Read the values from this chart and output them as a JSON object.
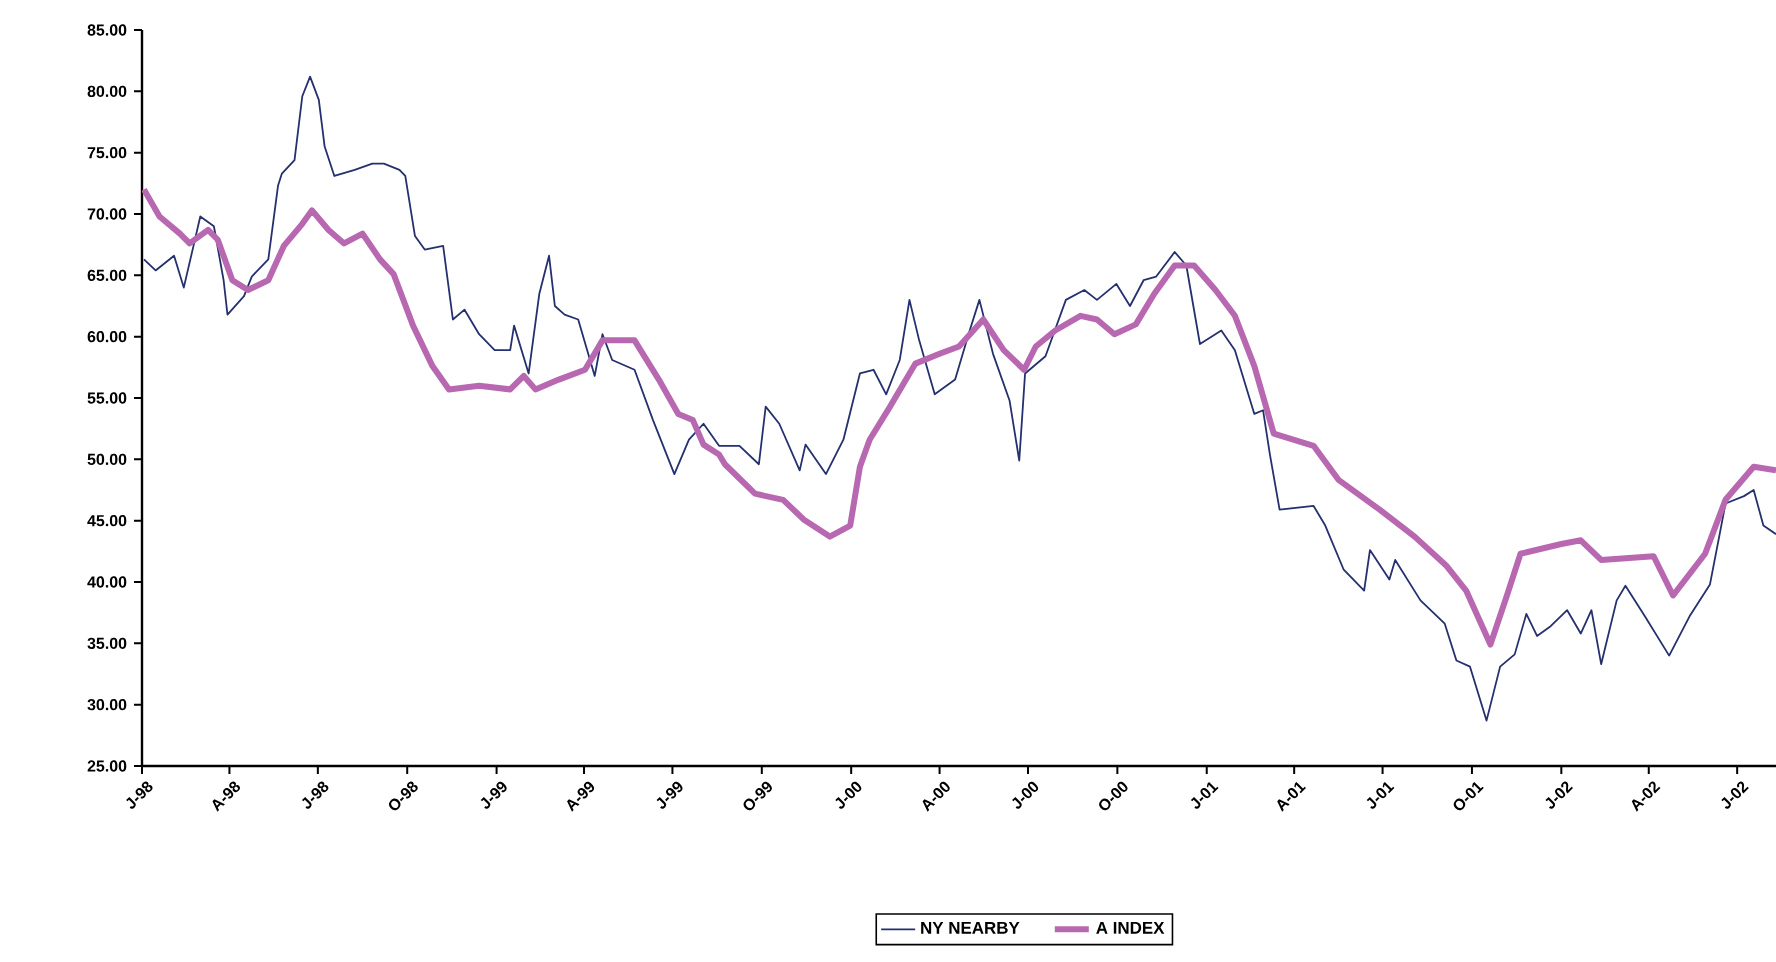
{
  "chart_data": {
    "type": "line",
    "xlim": [
      "1998-01-01",
      "2002-08-10"
    ],
    "xticks": [
      {
        "value": "1998-01-01",
        "label": "J-98"
      },
      {
        "value": "1998-04-01",
        "label": "A-98"
      },
      {
        "value": "1998-07-01",
        "label": "J-98"
      },
      {
        "value": "1998-10-01",
        "label": "O-98"
      },
      {
        "value": "1999-01-01",
        "label": "J-99"
      },
      {
        "value": "1999-04-01",
        "label": "A-99"
      },
      {
        "value": "1999-07-01",
        "label": "J-99"
      },
      {
        "value": "1999-10-01",
        "label": "O-99"
      },
      {
        "value": "2000-01-01",
        "label": "J-00"
      },
      {
        "value": "2000-04-01",
        "label": "A-00"
      },
      {
        "value": "2000-07-01",
        "label": "J-00"
      },
      {
        "value": "2000-10-01",
        "label": "O-00"
      },
      {
        "value": "2001-01-01",
        "label": "J-01"
      },
      {
        "value": "2001-04-01",
        "label": "A-01"
      },
      {
        "value": "2001-07-01",
        "label": "J-01"
      },
      {
        "value": "2001-10-01",
        "label": "O-01"
      },
      {
        "value": "2002-01-01",
        "label": "J-02"
      },
      {
        "value": "2002-04-01",
        "label": "A-02"
      },
      {
        "value": "2002-07-01",
        "label": "J-02"
      }
    ],
    "ylim": [
      25,
      85
    ],
    "yticks": [
      {
        "value": 25,
        "label": "25.00"
      },
      {
        "value": 30,
        "label": "30.00"
      },
      {
        "value": 35,
        "label": "35.00"
      },
      {
        "value": 40,
        "label": "40.00"
      },
      {
        "value": 45,
        "label": "45.00"
      },
      {
        "value": 50,
        "label": "50.00"
      },
      {
        "value": 55,
        "label": "55.00"
      },
      {
        "value": 60,
        "label": "60.00"
      },
      {
        "value": 65,
        "label": "65.00"
      },
      {
        "value": 70,
        "label": "70.00"
      },
      {
        "value": 75,
        "label": "75.00"
      },
      {
        "value": 80,
        "label": "80.00"
      },
      {
        "value": 85,
        "label": "85.00"
      }
    ],
    "grid": false,
    "legend": "bottom",
    "marker": "none",
    "line_style": "solid",
    "series": [
      {
        "name": "NY NEARBY",
        "color": "#25306e",
        "x": [
          "1998-01-03",
          "1998-01-15",
          "1998-02-03",
          "1998-02-13",
          "1998-02-23",
          "1998-03-02",
          "1998-03-16",
          "1998-03-26",
          "1998-03-30",
          "1998-04-16",
          "1998-04-24",
          "1998-05-11",
          "1998-05-21",
          "1998-05-25",
          "1998-06-07",
          "1998-06-15",
          "1998-06-23",
          "1998-07-02",
          "1998-07-08",
          "1998-07-18",
          "1998-08-08",
          "1998-08-26",
          "1998-09-07",
          "1998-09-23",
          "1998-09-29",
          "1998-10-09",
          "1998-10-19",
          "1998-11-07",
          "1998-11-17",
          "1998-11-29",
          "1998-12-14",
          "1998-12-30",
          "1999-01-15",
          "1999-01-19",
          "1999-02-03",
          "1999-02-14",
          "1999-02-24",
          "1999-03-02",
          "1999-03-12",
          "1999-03-26",
          "1999-04-12",
          "1999-04-20",
          "1999-04-30",
          "1999-05-23",
          "1999-06-11",
          "1999-07-03",
          "1999-07-18",
          "1999-08-02",
          "1999-08-18",
          "1999-08-24",
          "1999-09-08",
          "1999-09-28",
          "1999-10-05",
          "1999-10-19",
          "1999-11-09",
          "1999-11-15",
          "1999-12-06",
          "1999-12-24",
          "2000-01-10",
          "2000-01-24",
          "2000-02-06",
          "2000-02-20",
          "2000-03-01",
          "2000-03-11",
          "2000-03-27",
          "2000-04-17",
          "2000-05-02",
          "2000-05-12",
          "2000-05-26",
          "2000-06-12",
          "2000-06-22",
          "2000-06-28",
          "2000-07-19",
          "2000-08-09",
          "2000-08-28",
          "2000-09-10",
          "2000-09-30",
          "2000-10-14",
          "2000-10-28",
          "2000-11-10",
          "2000-11-29",
          "2000-12-11",
          "2000-12-25",
          "2001-01-16",
          "2001-01-30",
          "2001-02-19",
          "2001-02-28",
          "2001-03-07",
          "2001-03-17",
          "2001-04-21",
          "2001-05-03",
          "2001-05-22",
          "2001-06-12",
          "2001-06-18",
          "2001-07-08",
          "2001-07-14",
          "2001-08-09",
          "2001-09-03",
          "2001-09-15",
          "2001-09-29",
          "2001-10-16",
          "2001-10-30",
          "2001-11-14",
          "2001-11-26",
          "2001-12-07",
          "2001-12-21",
          "2002-01-07",
          "2002-01-21",
          "2002-02-01",
          "2002-02-11",
          "2002-02-27",
          "2002-03-08",
          "2002-03-28",
          "2002-04-22",
          "2002-05-13",
          "2002-06-03",
          "2002-06-13",
          "2002-06-19",
          "2002-07-08",
          "2002-07-18",
          "2002-07-28",
          "2002-08-10"
        ],
        "values": [
          66.3,
          65.4,
          66.6,
          64.0,
          67.4,
          69.8,
          69.0,
          64.6,
          61.8,
          63.3,
          64.9,
          66.3,
          72.3,
          73.3,
          74.4,
          79.6,
          81.2,
          79.3,
          75.5,
          73.1,
          73.6,
          74.1,
          74.1,
          73.6,
          73.1,
          68.2,
          67.1,
          67.4,
          61.4,
          62.2,
          60.2,
          58.9,
          58.9,
          60.9,
          57.0,
          63.5,
          66.6,
          62.5,
          61.8,
          61.4,
          56.8,
          60.2,
          58.1,
          57.3,
          53.2,
          48.8,
          51.6,
          52.9,
          51.1,
          51.1,
          51.1,
          49.6,
          54.3,
          52.9,
          49.1,
          51.2,
          48.8,
          51.6,
          57.0,
          57.3,
          55.3,
          58.1,
          63.0,
          59.7,
          55.3,
          56.5,
          60.5,
          63.0,
          58.6,
          54.8,
          49.9,
          57.0,
          58.4,
          63.0,
          63.8,
          63.0,
          64.3,
          62.5,
          64.6,
          64.9,
          66.9,
          65.8,
          59.4,
          60.5,
          58.9,
          53.7,
          54.0,
          50.4,
          45.9,
          46.2,
          44.6,
          41.0,
          39.3,
          42.6,
          40.2,
          41.8,
          38.5,
          36.6,
          33.6,
          33.1,
          28.7,
          33.1,
          34.1,
          37.4,
          35.6,
          36.4,
          37.7,
          35.8,
          37.7,
          33.3,
          38.5,
          39.7,
          37.2,
          34.0,
          37.2,
          39.8,
          43.9,
          46.4,
          47.0,
          47.5,
          44.6,
          43.9
        ]
      },
      {
        "name": "A INDEX",
        "color": "#b868b0",
        "x": [
          "1998-01-03",
          "1998-01-19",
          "1998-02-09",
          "1998-02-19",
          "1998-03-10",
          "1998-03-20",
          "1998-04-04",
          "1998-04-20",
          "1998-05-11",
          "1998-05-27",
          "1998-06-15",
          "1998-06-25",
          "1998-07-12",
          "1998-07-28",
          "1998-08-16",
          "1998-09-03",
          "1998-09-17",
          "1998-10-07",
          "1998-10-27",
          "1998-11-13",
          "1998-12-14",
          "1999-01-15",
          "1999-01-29",
          "1999-02-10",
          "1999-03-06",
          "1999-04-02",
          "1999-04-20",
          "1999-05-23",
          "1999-06-17",
          "1999-07-07",
          "1999-07-22",
          "1999-08-02",
          "1999-08-18",
          "1999-08-24",
          "1999-09-24",
          "1999-10-23",
          "1999-11-13",
          "1999-12-10",
          "1999-12-31",
          "2000-01-10",
          "2000-01-20",
          "2000-02-10",
          "2000-03-07",
          "2000-04-01",
          "2000-04-21",
          "2000-05-16",
          "2000-06-06",
          "2000-06-27",
          "2000-07-09",
          "2000-07-29",
          "2000-08-24",
          "2000-09-10",
          "2000-09-28",
          "2000-10-20",
          "2000-11-08",
          "2000-11-29",
          "2000-12-19",
          "2001-01-10",
          "2001-01-30",
          "2001-02-19",
          "2001-03-11",
          "2001-04-21",
          "2001-05-17",
          "2001-06-28",
          "2001-08-03",
          "2001-09-05",
          "2001-09-25",
          "2001-10-20",
          "2001-11-06",
          "2001-11-20",
          "2002-01-01",
          "2002-01-21",
          "2002-02-11",
          "2002-04-06",
          "2002-04-26",
          "2002-05-29",
          "2002-06-19",
          "2002-07-18",
          "2002-08-10"
        ],
        "values": [
          72.0,
          69.8,
          68.4,
          67.6,
          68.7,
          67.9,
          64.6,
          63.8,
          64.6,
          67.4,
          69.2,
          70.3,
          68.7,
          67.6,
          68.4,
          66.3,
          65.1,
          60.9,
          57.6,
          55.7,
          56.0,
          55.7,
          56.8,
          55.7,
          56.5,
          57.3,
          59.7,
          59.7,
          56.5,
          53.7,
          53.2,
          51.2,
          50.4,
          49.6,
          47.2,
          46.7,
          45.1,
          43.7,
          44.6,
          49.4,
          51.6,
          54.3,
          57.8,
          58.6,
          59.2,
          61.4,
          58.9,
          57.3,
          59.2,
          60.5,
          61.7,
          61.4,
          60.2,
          61.0,
          63.5,
          65.8,
          65.8,
          63.8,
          61.7,
          57.6,
          52.1,
          51.1,
          48.3,
          45.9,
          43.7,
          41.3,
          39.3,
          34.9,
          38.9,
          42.3,
          43.1,
          43.4,
          41.8,
          42.1,
          38.9,
          42.3,
          46.7,
          49.4,
          49.1
        ]
      }
    ]
  }
}
